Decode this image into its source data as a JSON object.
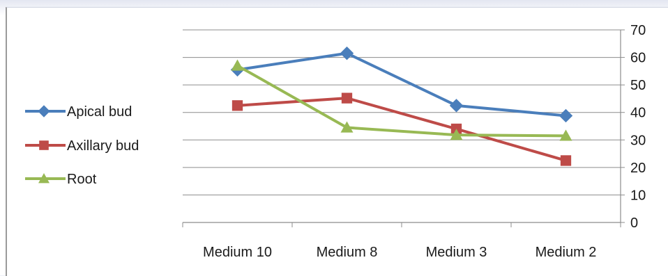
{
  "chart_data": {
    "type": "line",
    "categories": [
      "Medium 10",
      "Medium 8",
      "Medium 3",
      "Medium 2"
    ],
    "series": [
      {
        "name": "Apical bud",
        "values": [
          55.5,
          61.5,
          42.5,
          38.8
        ],
        "color": "#4a7ebb",
        "marker": "diamond"
      },
      {
        "name": "Axillary bud",
        "values": [
          42.5,
          45.2,
          34.0,
          22.5
        ],
        "color": "#be4b48",
        "marker": "square"
      },
      {
        "name": "Root",
        "values": [
          57.0,
          34.5,
          31.8,
          31.5
        ],
        "color": "#98b954",
        "marker": "triangle"
      }
    ],
    "ylim": [
      0,
      70
    ],
    "yticks": [
      "0",
      "10",
      "20",
      "30",
      "40",
      "50",
      "60",
      "70"
    ],
    "y_axis_side": "right",
    "grid": true,
    "legend_position": "left"
  }
}
